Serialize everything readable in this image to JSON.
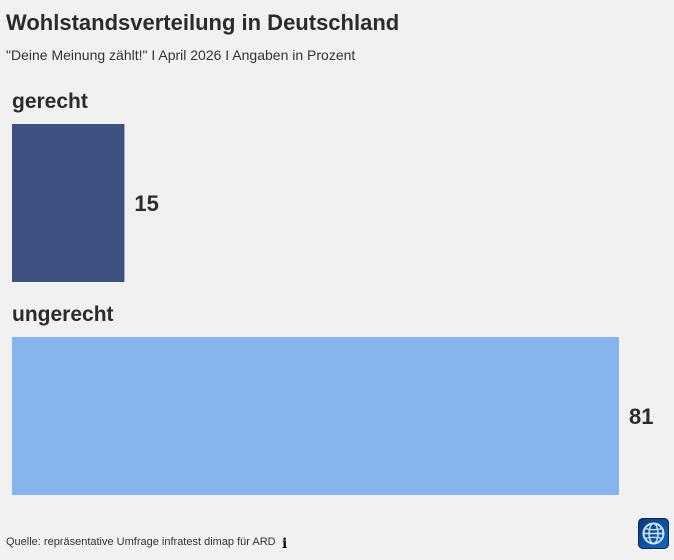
{
  "header": {
    "title": "Wohlstandsverteilung in Deutschland",
    "subtitle": "\"Deine Meinung zählt!\" I April 2026 I Angaben in Prozent"
  },
  "chart_data": {
    "type": "bar",
    "orientation": "horizontal",
    "categories": [
      "gerecht",
      "ungerecht"
    ],
    "values": [
      15,
      81
    ],
    "colors": [
      "#3d5180",
      "#85b4ef"
    ],
    "xlim": [
      0,
      81
    ],
    "grid": false,
    "legend": "none"
  },
  "footer": {
    "source": "Quelle: repräsentative Umfrage infratest dimap für ARD",
    "info_icon": "info-icon",
    "logo_icon": "tagesschau-globe-icon"
  }
}
